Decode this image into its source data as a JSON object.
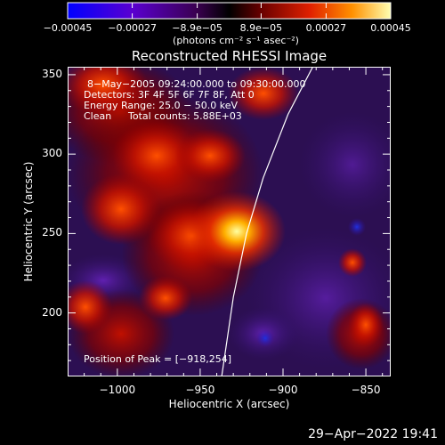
{
  "chart_data": {
    "type": "heatmap",
    "title": "Reconstructed RHESSI Image",
    "xlabel": "Heliocentric X (arcsec)",
    "ylabel": "Heliocentric Y (arcsec)",
    "xlim": [
      -1030,
      -835
    ],
    "ylim": [
      160,
      355
    ],
    "x_ticks": [
      -1000,
      -950,
      -900,
      -850
    ],
    "y_ticks": [
      200,
      250,
      300,
      350
    ],
    "x_tick_labels": [
      "−1000",
      "−950",
      "−900",
      "−850"
    ],
    "y_tick_labels": [
      "200",
      "250",
      "300",
      "350"
    ],
    "colorbar": {
      "range": [
        -0.00045,
        0.00045
      ],
      "tick_labels": [
        "−0.00045",
        "−0.00027",
        "−8.9e−05",
        "8.9e−05",
        "0.00027",
        "0.00045"
      ],
      "tick_values": [
        -0.00045,
        -0.00027,
        -8.9e-05,
        8.9e-05,
        0.00027,
        0.00045
      ],
      "label": "(photons cm⁻² s⁻¹ asec⁻²)",
      "colors": [
        "#0000ff",
        "#7a00c8",
        "#000000",
        "#b40000",
        "#ff6000",
        "#ffff80"
      ]
    },
    "annotations": {
      "time_range": "8−May−2005 09:24:00.000 to 09:30:00.000",
      "detectors": "Detectors: 3F 4F 5F 6F 7F 8F, Att 0",
      "energy": "Energy Range: 25.0 − 50.0 keV",
      "clean_label": "Clean",
      "counts": "Total counts: 5.88E+03",
      "peak": "Position of Peak = [−918,254]"
    },
    "peak": {
      "x": -918,
      "y": 254
    },
    "limb_curve": [
      [
        -937,
        160
      ],
      [
        -930,
        210
      ],
      [
        -922,
        250
      ],
      [
        -912,
        285
      ],
      [
        -897,
        325
      ],
      [
        -882,
        355
      ]
    ]
  },
  "footer": {
    "timestamp": "29−Apr−2022 19:41"
  }
}
